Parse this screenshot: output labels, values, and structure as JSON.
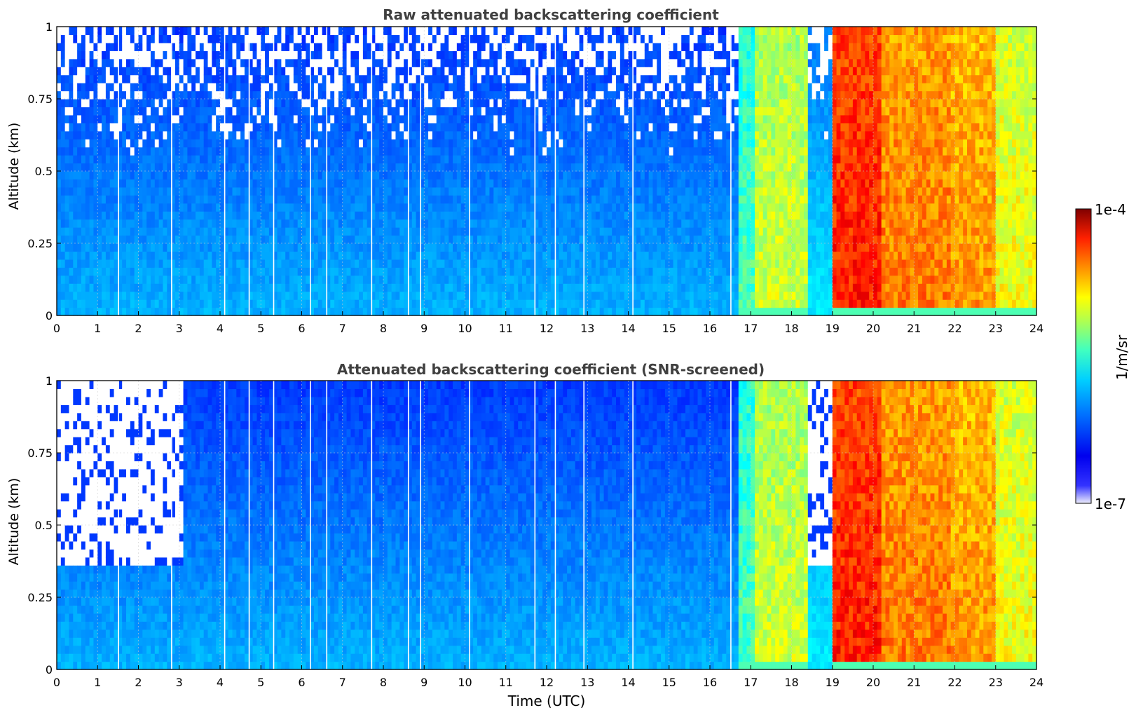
{
  "figure": {
    "xlabel": "Time (UTC)",
    "colorbar": {
      "label": "1/m/sr",
      "max_label": "1e-4",
      "min_label": "1e-7"
    }
  },
  "chart_data": [
    {
      "type": "heatmap",
      "title": "Raw attenuated backscattering coefficient",
      "xlabel": "",
      "ylabel": "Altitude (km)",
      "xlim": [
        0,
        24
      ],
      "ylim": [
        0,
        1
      ],
      "xticks": [
        0,
        1,
        2,
        3,
        4,
        5,
        6,
        7,
        8,
        9,
        10,
        11,
        12,
        13,
        14,
        15,
        16,
        17,
        18,
        19,
        20,
        21,
        22,
        23,
        24
      ],
      "yticks": [
        0,
        0.25,
        0.5,
        0.75,
        1
      ],
      "ytick_labels": [
        "0",
        "0.25",
        "0.5",
        "0.75",
        "1"
      ],
      "grid": true,
      "colorscale": "jet (log)",
      "zlim": [
        "1e-7",
        "1e-4"
      ],
      "zunit": "1/m/sr",
      "time_segments": [
        {
          "t": [
            0,
            16.7
          ],
          "level": 0.24
        },
        {
          "t": [
            16.7,
            17.1
          ],
          "level": 0.45
        },
        {
          "t": [
            17.1,
            18.4
          ],
          "level": 0.58
        },
        {
          "t": [
            18.4,
            19.0
          ],
          "level": 0.3
        },
        {
          "t": [
            19.0,
            20.2
          ],
          "level": 0.85
        },
        {
          "t": [
            20.2,
            21.9
          ],
          "level": 0.76
        },
        {
          "t": [
            21.9,
            23.0
          ],
          "level": 0.73
        },
        {
          "t": [
            23.0,
            24.0
          ],
          "level": 0.62
        }
      ],
      "sharp_gaps_utc": [
        1.5,
        2.8,
        4.1,
        4.7,
        5.3,
        6.2,
        6.6,
        7.7,
        8.6,
        8.9,
        10.1,
        11.7,
        12.2,
        12.9,
        14.1,
        16.5
      ]
    },
    {
      "type": "heatmap",
      "title": "Attenuated backscattering coefficient (SNR-screened)",
      "xlabel": "Time (UTC)",
      "ylabel": "Altitude (km)",
      "xlim": [
        0,
        24
      ],
      "ylim": [
        0,
        1
      ],
      "xticks": [
        0,
        1,
        2,
        3,
        4,
        5,
        6,
        7,
        8,
        9,
        10,
        11,
        12,
        13,
        14,
        15,
        16,
        17,
        18,
        19,
        20,
        21,
        22,
        23,
        24
      ],
      "yticks": [
        0,
        0.25,
        0.5,
        0.75,
        1
      ],
      "ytick_labels": [
        "0",
        "0.25",
        "0.5",
        "0.75",
        "1"
      ],
      "grid": true,
      "colorscale": "jet (log)",
      "zlim": [
        "1e-7",
        "1e-4"
      ],
      "zunit": "1/m/sr",
      "screened_regions": [
        {
          "t": [
            0,
            3.1
          ],
          "above_km": 0.35
        },
        {
          "t": [
            18.4,
            19.0
          ],
          "above_km": 0.35
        }
      ],
      "time_segments": [
        {
          "t": [
            0,
            16.7
          ],
          "level": 0.24
        },
        {
          "t": [
            16.7,
            17.1
          ],
          "level": 0.45
        },
        {
          "t": [
            17.1,
            18.4
          ],
          "level": 0.58
        },
        {
          "t": [
            18.4,
            19.0
          ],
          "level": 0.3
        },
        {
          "t": [
            19.0,
            20.2
          ],
          "level": 0.85
        },
        {
          "t": [
            20.2,
            21.9
          ],
          "level": 0.76
        },
        {
          "t": [
            21.9,
            23.0
          ],
          "level": 0.73
        },
        {
          "t": [
            23.0,
            24.0
          ],
          "level": 0.62
        }
      ]
    }
  ]
}
